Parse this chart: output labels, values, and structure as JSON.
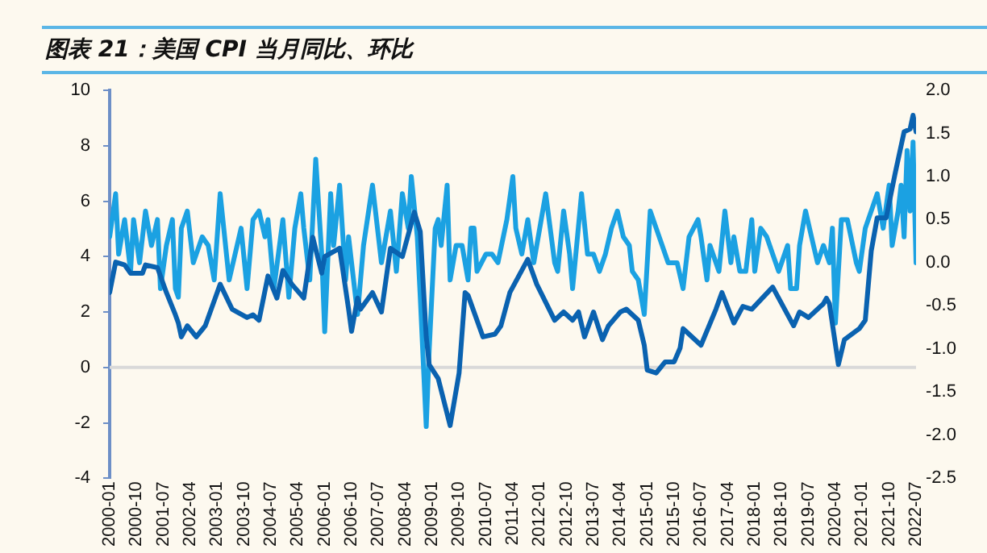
{
  "chart_data": {
    "type": "line",
    "title": "图表 21：美国 CPI 当月同比、环比",
    "xlim": [
      "2000-01",
      "2022-07"
    ],
    "xticks": [
      "2000-01",
      "2000-10",
      "2001-07",
      "2002-04",
      "2003-01",
      "2003-10",
      "2004-07",
      "2005-04",
      "2006-01",
      "2006-10",
      "2007-07",
      "2008-04",
      "2009-01",
      "2009-10",
      "2010-07",
      "2011-04",
      "2012-01",
      "2012-10",
      "2013-07",
      "2014-04",
      "2015-01",
      "2015-10",
      "2016-07",
      "2017-04",
      "2018-01",
      "2018-10",
      "2019-07",
      "2020-04",
      "2021-01",
      "2021-10",
      "2022-07"
    ],
    "ylim": [
      -4,
      10
    ],
    "yticks": [
      -4,
      -2,
      0,
      2,
      4,
      6,
      8,
      10
    ],
    "y2lim": [
      -2.5,
      2.0
    ],
    "y2ticks": [
      -2.5,
      {
        "value": -2,
        "label": "-2.0"
      },
      -1.5,
      {
        "value": -1,
        "label": "-1.0"
      },
      -0.5,
      {
        "value": 0,
        "label": "0.0"
      },
      0.5,
      {
        "value": 1,
        "label": "1.0"
      },
      1.5,
      {
        "value": 2,
        "label": "2.0"
      }
    ],
    "ref_lines": [
      {
        "axis": "y",
        "value": 0,
        "color": "#d9d9d9"
      }
    ],
    "grid": false,
    "legend": false,
    "marker": "none",
    "line_style": "solid",
    "series": [
      {
        "color": "#0a62b0",
        "x": [
          "2000-01",
          "2000-03",
          "2000-06",
          "2000-08",
          "2000-12",
          "2001-01",
          "2001-05",
          "2001-08",
          "2001-11",
          "2001-12",
          "2002-01",
          "2002-03",
          "2002-06",
          "2002-09",
          "2002-12",
          "2003-02",
          "2003-06",
          "2003-11",
          "2004-01",
          "2004-03",
          "2004-06",
          "2004-09",
          "2004-11",
          "2005-02",
          "2005-06",
          "2005-09",
          "2005-12",
          "2006-01",
          "2006-06",
          "2006-09",
          "2006-10",
          "2006-12",
          "2007-01",
          "2007-05",
          "2007-08",
          "2007-11",
          "2008-03",
          "2008-07",
          "2008-09",
          "2008-11",
          "2008-12",
          "2009-03",
          "2009-07",
          "2009-10",
          "2009-12",
          "2010-01",
          "2010-06",
          "2010-10",
          "2010-12",
          "2011-03",
          "2011-09",
          "2011-12",
          "2012-06",
          "2012-09",
          "2012-12",
          "2013-02",
          "2013-04",
          "2013-07",
          "2013-10",
          "2013-12",
          "2014-04",
          "2014-06",
          "2014-10",
          "2014-12",
          "2015-01",
          "2015-04",
          "2015-07",
          "2015-10",
          "2015-12",
          "2016-01",
          "2016-04",
          "2016-07",
          "2016-12",
          "2017-02",
          "2017-06",
          "2017-09",
          "2017-12",
          "2018-07",
          "2018-12",
          "2019-02",
          "2019-04",
          "2019-07",
          "2019-12",
          "2020-01",
          "2020-02",
          "2020-05",
          "2020-07",
          "2020-12",
          "2021-02",
          "2021-04",
          "2021-06",
          "2021-09",
          "2021-12",
          "2022-03",
          "2022-05",
          "2022-06",
          "2022-07"
        ],
        "values": [
          2.7,
          3.8,
          3.7,
          3.4,
          3.4,
          3.7,
          3.6,
          2.7,
          1.9,
          1.6,
          1.1,
          1.5,
          1.1,
          1.5,
          2.4,
          3.0,
          2.1,
          1.8,
          1.9,
          1.7,
          3.3,
          2.5,
          3.5,
          3.0,
          2.5,
          4.7,
          3.4,
          4.0,
          4.3,
          2.1,
          1.3,
          2.5,
          2.1,
          2.7,
          2.0,
          4.3,
          4.0,
          5.6,
          4.9,
          1.1,
          0.1,
          -0.4,
          -2.1,
          -0.2,
          2.7,
          2.6,
          1.1,
          1.2,
          1.5,
          2.7,
          3.9,
          3.0,
          1.7,
          2.0,
          1.7,
          2.0,
          1.1,
          2.0,
          1.0,
          1.5,
          2.0,
          2.1,
          1.7,
          0.8,
          -0.1,
          -0.2,
          0.2,
          0.2,
          0.7,
          1.4,
          1.1,
          0.8,
          2.1,
          2.7,
          1.6,
          2.2,
          2.1,
          2.9,
          1.9,
          1.5,
          2.0,
          1.8,
          2.3,
          2.5,
          2.3,
          0.1,
          1.0,
          1.4,
          1.7,
          4.2,
          5.4,
          5.4,
          7.0,
          8.5,
          8.6,
          9.1,
          8.5
        ]
      },
      {
        "color": "#1ba1e2",
        "axis": "y2",
        "x": [
          "2000-01",
          "2000-03",
          "2000-04",
          "2000-06",
          "2000-08",
          "2000-09",
          "2000-11",
          "2001-01",
          "2001-03",
          "2001-05",
          "2001-06",
          "2001-08",
          "2001-10",
          "2001-11",
          "2001-12",
          "2002-01",
          "2002-03",
          "2002-05",
          "2002-08",
          "2002-10",
          "2002-12",
          "2003-02",
          "2003-05",
          "2003-07",
          "2003-09",
          "2003-11",
          "2004-01",
          "2004-03",
          "2004-05",
          "2004-06",
          "2004-08",
          "2004-11",
          "2005-01",
          "2005-03",
          "2005-05",
          "2005-06",
          "2005-08",
          "2005-09",
          "2005-10",
          "2005-12",
          "2006-01",
          "2006-03",
          "2006-04",
          "2006-06",
          "2006-08",
          "2006-09",
          "2006-12",
          "2007-02",
          "2007-05",
          "2007-08",
          "2007-11",
          "2008-01",
          "2008-03",
          "2008-05",
          "2008-06",
          "2008-08",
          "2008-09",
          "2008-11",
          "2008-12",
          "2009-02",
          "2009-03",
          "2009-04",
          "2009-06",
          "2009-07",
          "2009-09",
          "2009-11",
          "2010-01",
          "2010-02",
          "2010-03",
          "2010-04",
          "2010-07",
          "2010-09",
          "2010-11",
          "2011-02",
          "2011-04",
          "2011-05",
          "2011-07",
          "2011-09",
          "2011-11",
          "2012-01",
          "2012-03",
          "2012-06",
          "2012-07",
          "2012-09",
          "2012-11",
          "2012-12",
          "2013-03",
          "2013-05",
          "2013-07",
          "2013-09",
          "2013-11",
          "2014-01",
          "2014-03",
          "2014-05",
          "2014-07",
          "2014-08",
          "2014-10",
          "2014-12",
          "2015-02",
          "2015-04",
          "2015-06",
          "2015-08",
          "2015-11",
          "2016-01",
          "2016-03",
          "2016-06",
          "2016-07",
          "2016-09",
          "2016-10",
          "2017-01",
          "2017-03",
          "2017-05",
          "2017-06",
          "2017-08",
          "2017-10",
          "2017-12",
          "2018-01",
          "2018-03",
          "2018-05",
          "2018-07",
          "2018-09",
          "2018-12",
          "2019-01",
          "2019-03",
          "2019-04",
          "2019-06",
          "2019-08",
          "2019-10",
          "2019-12",
          "2020-02",
          "2020-03",
          "2020-04",
          "2020-06",
          "2020-08",
          "2020-11",
          "2020-12",
          "2021-02",
          "2021-05",
          "2021-06",
          "2021-08",
          "2021-10",
          "2021-11",
          "2022-01",
          "2022-02",
          "2022-03",
          "2022-04",
          "2022-05",
          "2022-06",
          "2022-07"
        ],
        "values": [
          0.3,
          0.8,
          0.1,
          0.5,
          -0.1,
          0.5,
          0.0,
          0.6,
          0.2,
          0.5,
          -0.3,
          0.2,
          0.5,
          -0.3,
          -0.4,
          0.4,
          0.6,
          0.0,
          0.3,
          0.2,
          -0.2,
          0.8,
          -0.2,
          0.1,
          0.4,
          -0.3,
          0.5,
          0.6,
          0.3,
          0.5,
          -0.3,
          0.5,
          -0.4,
          0.4,
          0.8,
          0.4,
          -0.2,
          0.5,
          1.2,
          0.1,
          -0.8,
          0.8,
          0.2,
          0.9,
          -0.2,
          0.3,
          -0.6,
          0.2,
          0.9,
          0.0,
          0.6,
          -0.1,
          0.8,
          0.4,
          1.0,
          0.3,
          -0.4,
          -1.9,
          -1.0,
          0.4,
          0.5,
          0.2,
          0.9,
          -0.2,
          0.2,
          0.2,
          -0.2,
          0.4,
          0.4,
          -0.1,
          0.1,
          0.1,
          0.0,
          0.5,
          1.0,
          0.4,
          0.1,
          0.5,
          0.0,
          0.4,
          0.8,
          0.0,
          -0.1,
          0.6,
          0.1,
          -0.3,
          0.8,
          0.1,
          0.1,
          -0.1,
          0.1,
          0.4,
          0.6,
          0.3,
          0.2,
          -0.1,
          -0.2,
          -0.6,
          0.6,
          0.4,
          0.2,
          0.0,
          0.0,
          -0.3,
          0.3,
          0.5,
          0.3,
          -0.2,
          0.2,
          -0.1,
          0.6,
          0.0,
          0.3,
          -0.1,
          -0.1,
          0.5,
          -0.1,
          0.4,
          0.3,
          0.1,
          -0.1,
          0.2,
          -0.3,
          -0.3,
          0.2,
          0.6,
          0.3,
          0.0,
          0.2,
          0.0,
          0.4,
          -0.7,
          0.5,
          0.5,
          0.0,
          -0.1,
          0.4,
          0.7,
          0.8,
          0.4,
          0.9,
          0.2,
          0.6,
          0.9,
          0.3,
          1.3,
          0.6,
          1.4,
          0.0
        ]
      }
    ]
  }
}
